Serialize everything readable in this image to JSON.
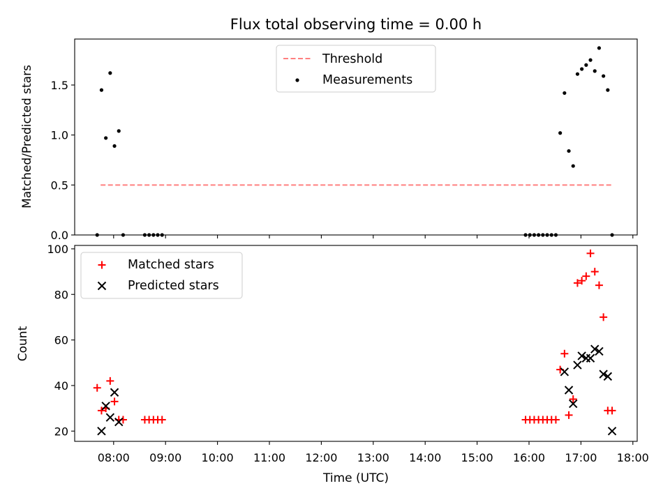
{
  "chart_data": [
    {
      "type": "scatter",
      "title": "Flux total observing time = 0.00 h",
      "ylabel": "Matched/Predicted stars",
      "ylim": [
        0,
        1.96
      ],
      "yticks": [
        0.0,
        0.5,
        1.0,
        1.5
      ],
      "ytick_labels": [
        "0.0",
        "0.5",
        "1.0",
        "1.5"
      ],
      "grid": false,
      "legend_position": "top-center",
      "series": [
        {
          "name": "Threshold",
          "kind": "line",
          "style": "dashed",
          "color": "#ff7f7f",
          "x": [
            "07:45",
            "17:35"
          ],
          "y": [
            0.5,
            0.5
          ]
        },
        {
          "name": "Measurements",
          "kind": "scatter",
          "marker": "dot",
          "color": "#000000",
          "x": [
            "07:41",
            "07:46",
            "07:51",
            "07:56",
            "08:01",
            "08:06",
            "08:11",
            "08:36",
            "08:41",
            "08:46",
            "08:51",
            "08:56",
            "15:56",
            "16:01",
            "16:06",
            "16:11",
            "16:16",
            "16:21",
            "16:26",
            "16:31",
            "16:36",
            "16:41",
            "16:46",
            "16:51",
            "16:56",
            "17:01",
            "17:06",
            "17:11",
            "17:16",
            "17:21",
            "17:26",
            "17:31",
            "17:36"
          ],
          "y": [
            0.0,
            1.45,
            0.97,
            1.62,
            0.89,
            1.04,
            0.0,
            0.0,
            0.0,
            0.0,
            0.0,
            0.0,
            0.0,
            0.0,
            0.0,
            0.0,
            0.0,
            0.0,
            0.0,
            0.0,
            1.02,
            1.42,
            0.84,
            0.69,
            1.61,
            1.66,
            1.7,
            1.75,
            1.64,
            1.87,
            1.59,
            1.45,
            0.0
          ]
        }
      ]
    },
    {
      "type": "scatter",
      "xlabel": "Time (UTC)",
      "ylabel": "Count",
      "ylim": [
        15.5,
        101.5
      ],
      "yticks": [
        20,
        40,
        60,
        80,
        100
      ],
      "ytick_labels": [
        "20",
        "40",
        "60",
        "80",
        "100"
      ],
      "xticks": [
        "08:00",
        "09:00",
        "10:00",
        "11:00",
        "12:00",
        "13:00",
        "14:00",
        "15:00",
        "16:00",
        "17:00",
        "18:00"
      ],
      "xlim": [
        "07:15",
        "18:05"
      ],
      "grid": false,
      "legend_position": "top-left",
      "series": [
        {
          "name": "Matched stars",
          "marker": "plus",
          "color": "#ff0000",
          "x": [
            "07:41",
            "07:46",
            "07:51",
            "07:56",
            "08:01",
            "08:06",
            "08:11",
            "08:36",
            "08:41",
            "08:46",
            "08:51",
            "08:56",
            "15:56",
            "16:01",
            "16:06",
            "16:11",
            "16:16",
            "16:21",
            "16:26",
            "16:31",
            "16:36",
            "16:41",
            "16:46",
            "16:51",
            "16:56",
            "17:01",
            "17:06",
            "17:11",
            "17:16",
            "17:21",
            "17:26",
            "17:31",
            "17:36"
          ],
          "y": [
            39,
            29,
            30,
            42,
            33,
            25,
            25,
            25,
            25,
            25,
            25,
            25,
            25,
            25,
            25,
            25,
            25,
            25,
            25,
            25,
            47,
            54,
            27,
            34,
            85,
            86,
            88,
            98,
            90,
            84,
            70,
            29,
            29
          ]
        },
        {
          "name": "Predicted stars",
          "marker": "x",
          "color": "#000000",
          "x": [
            "07:46",
            "07:51",
            "07:56",
            "08:01",
            "08:06",
            "16:41",
            "16:46",
            "16:51",
            "16:56",
            "17:01",
            "17:06",
            "17:11",
            "17:16",
            "17:21",
            "17:26",
            "17:31",
            "17:36"
          ],
          "y": [
            20,
            31,
            26,
            37,
            24,
            46,
            38,
            32,
            49,
            53,
            52,
            52,
            56,
            55,
            45,
            44,
            20
          ]
        }
      ]
    }
  ]
}
